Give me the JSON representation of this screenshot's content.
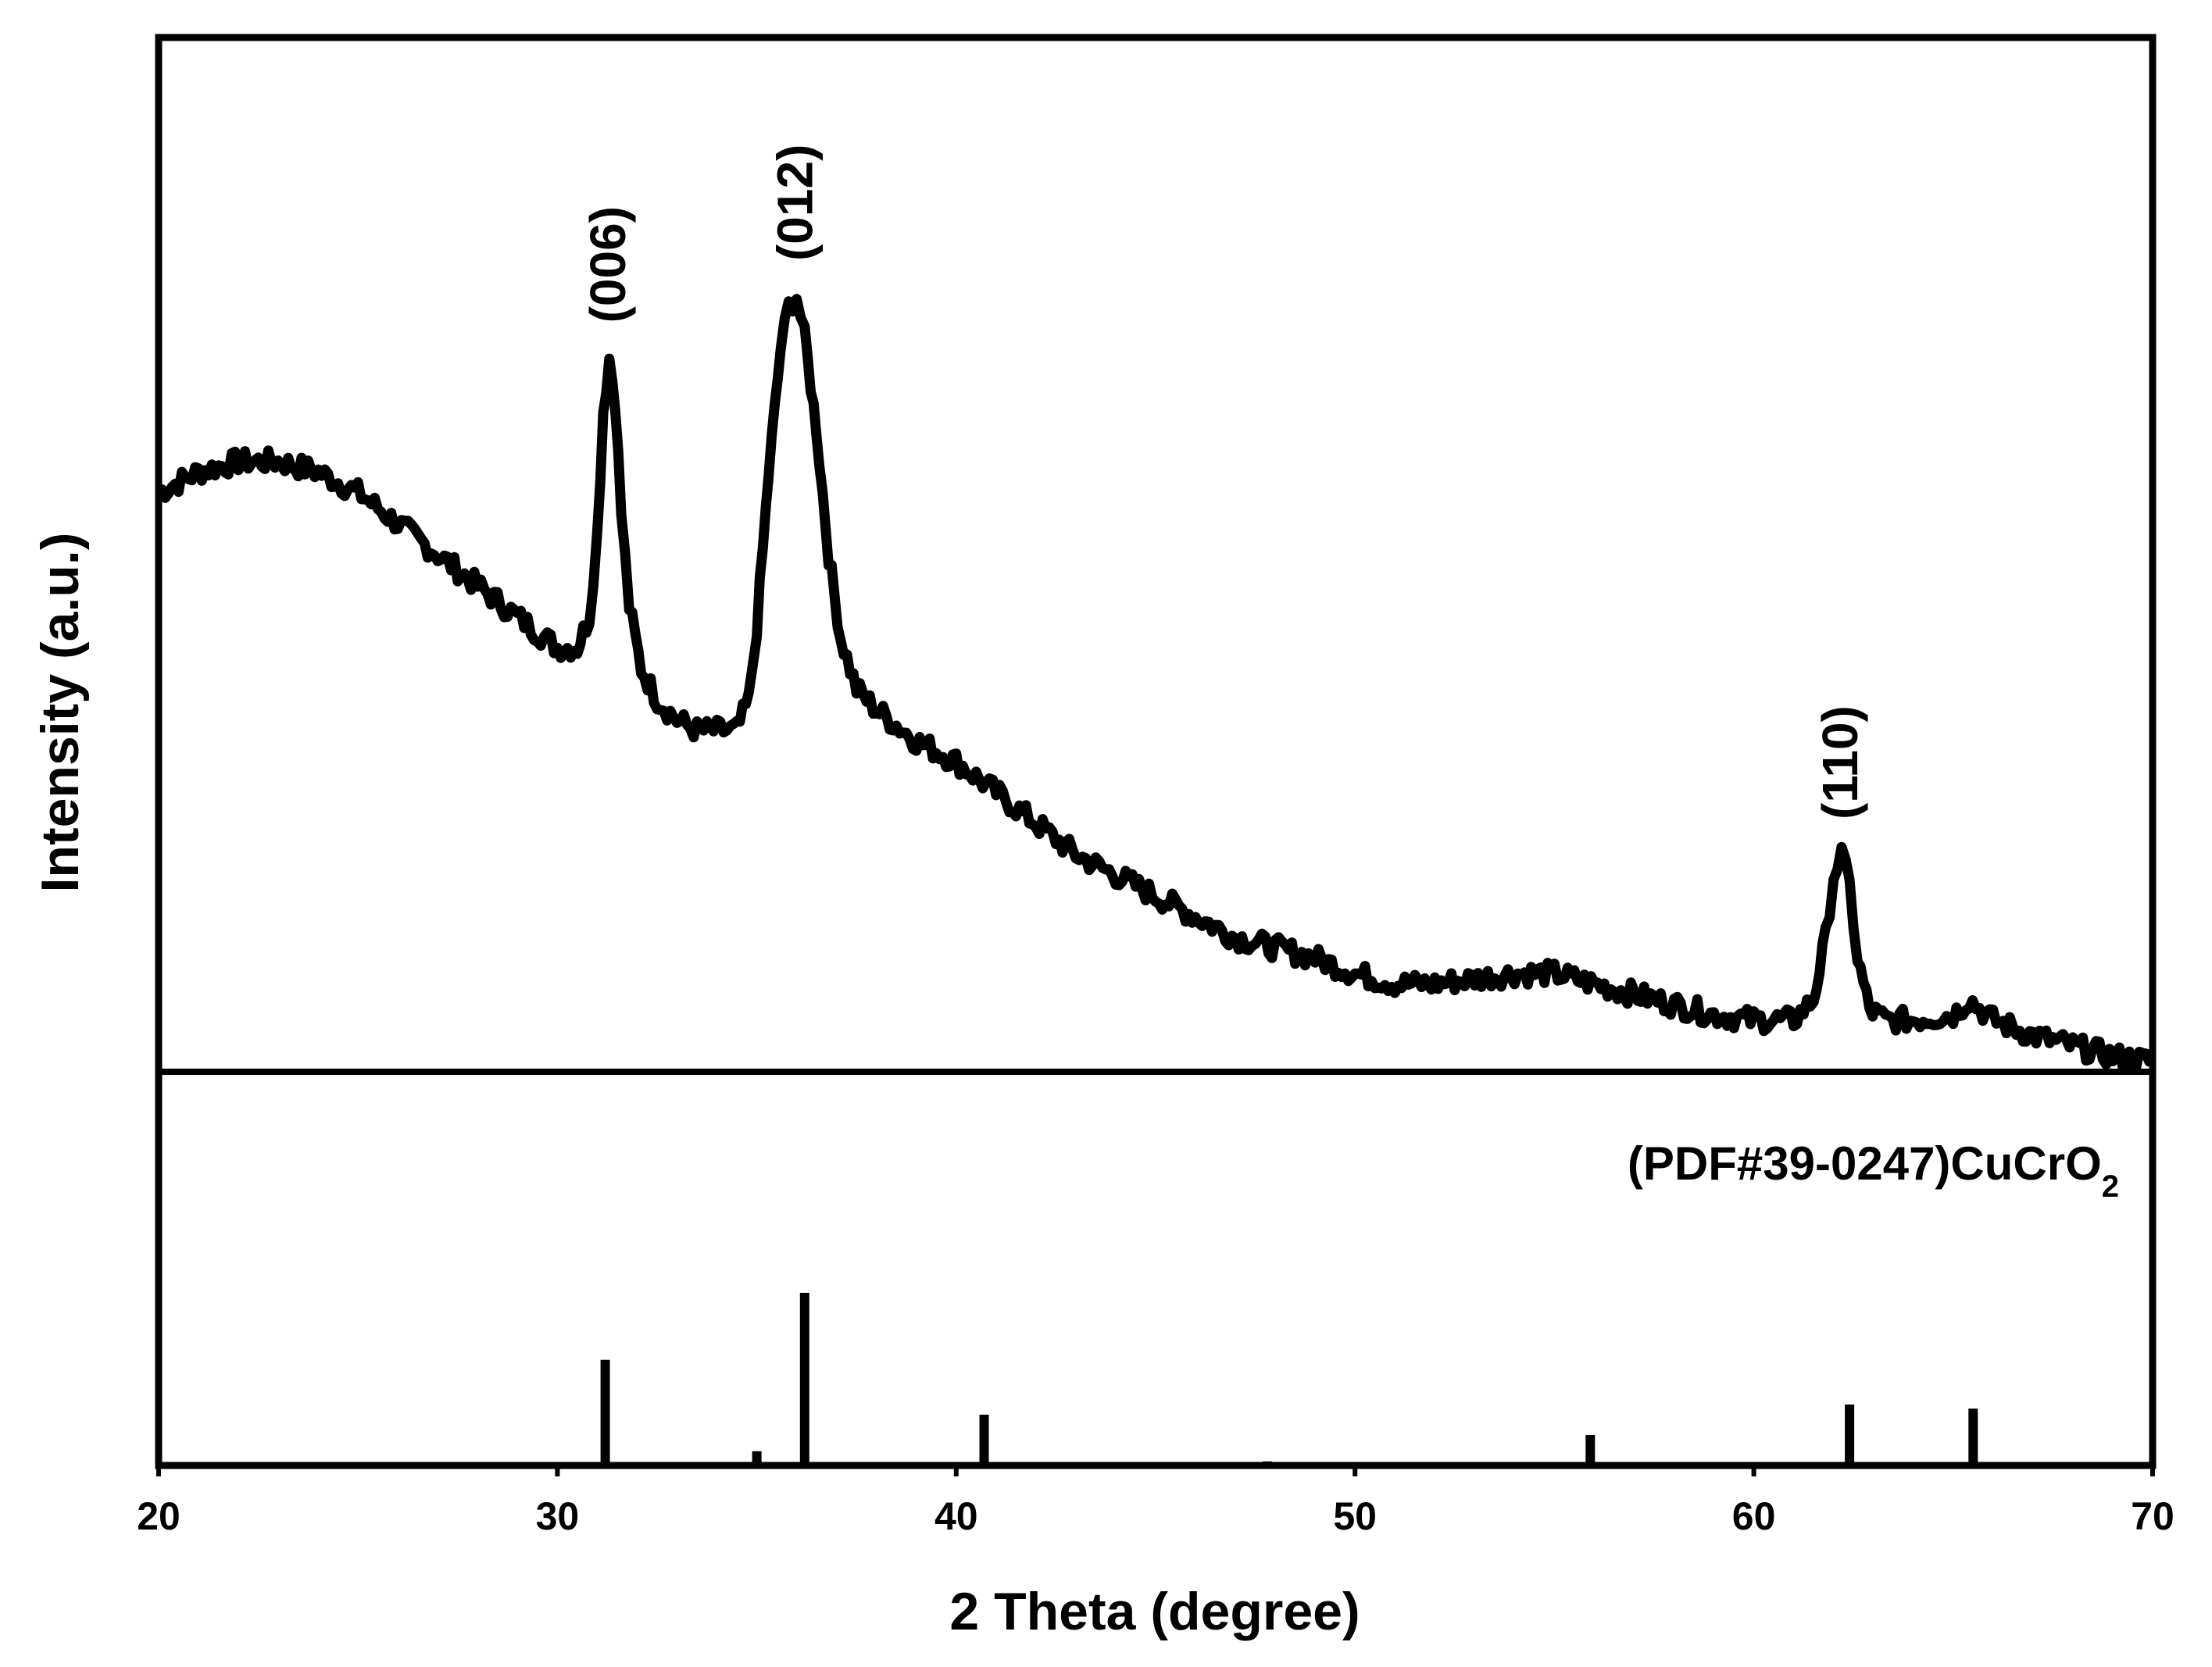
{
  "chart_data": {
    "type": "line",
    "xlabel": "2 Theta (degree)",
    "ylabel": "Intensity (a.u.)",
    "xlim": [
      20,
      70
    ],
    "xticks": [
      20,
      30,
      40,
      50,
      60,
      70
    ],
    "grid": false,
    "reference_label": {
      "main": "(PDF#39-0247)CuCrO",
      "subscript": "2"
    },
    "peak_labels": [
      {
        "x": 31.3,
        "text": "(006)"
      },
      {
        "x": 36.0,
        "text": "(012)"
      },
      {
        "x": 62.2,
        "text": "(110)"
      }
    ],
    "series": [
      {
        "x": [
          20,
          21,
          22,
          23,
          24,
          25,
          26,
          27,
          28,
          29,
          30,
          30.5,
          30.8,
          31.0,
          31.15,
          31.3,
          31.45,
          31.6,
          31.8,
          32.1,
          32.5,
          33,
          33.5,
          34,
          34.5,
          34.8,
          35.0,
          35.3,
          35.6,
          35.8,
          36.0,
          36.2,
          36.5,
          36.8,
          37.1,
          37.5,
          38,
          39,
          40,
          41,
          42,
          43,
          44,
          45,
          46,
          47,
          48,
          49,
          50,
          51,
          52,
          53,
          54,
          55,
          56,
          57,
          58,
          59,
          60,
          61,
          61.5,
          61.8,
          62.0,
          62.2,
          62.4,
          62.6,
          62.9,
          63.3,
          64,
          65,
          65.4,
          66,
          67,
          68,
          69,
          70
        ],
        "y": [
          0.56,
          0.58,
          0.59,
          0.59,
          0.58,
          0.56,
          0.53,
          0.5,
          0.47,
          0.44,
          0.41,
          0.41,
          0.44,
          0.52,
          0.64,
          0.69,
          0.65,
          0.54,
          0.45,
          0.39,
          0.36,
          0.34,
          0.33,
          0.33,
          0.33,
          0.36,
          0.43,
          0.58,
          0.7,
          0.74,
          0.75,
          0.71,
          0.62,
          0.5,
          0.42,
          0.37,
          0.35,
          0.32,
          0.3,
          0.27,
          0.24,
          0.21,
          0.19,
          0.17,
          0.15,
          0.13,
          0.12,
          0.11,
          0.095,
          0.085,
          0.085,
          0.09,
          0.095,
          0.095,
          0.085,
          0.075,
          0.065,
          0.055,
          0.05,
          0.05,
          0.07,
          0.13,
          0.19,
          0.21,
          0.18,
          0.11,
          0.06,
          0.05,
          0.05,
          0.055,
          0.07,
          0.05,
          0.035,
          0.025,
          0.015,
          0.01
        ]
      }
    ],
    "reference_lines": [
      {
        "x": 31.2,
        "height": 0.52
      },
      {
        "x": 35.0,
        "height": 0.07
      },
      {
        "x": 36.2,
        "height": 0.85
      },
      {
        "x": 40.7,
        "height": 0.25
      },
      {
        "x": 47.8,
        "height": 0.02
      },
      {
        "x": 55.9,
        "height": 0.15
      },
      {
        "x": 62.4,
        "height": 0.3
      },
      {
        "x": 65.5,
        "height": 0.28
      }
    ]
  }
}
